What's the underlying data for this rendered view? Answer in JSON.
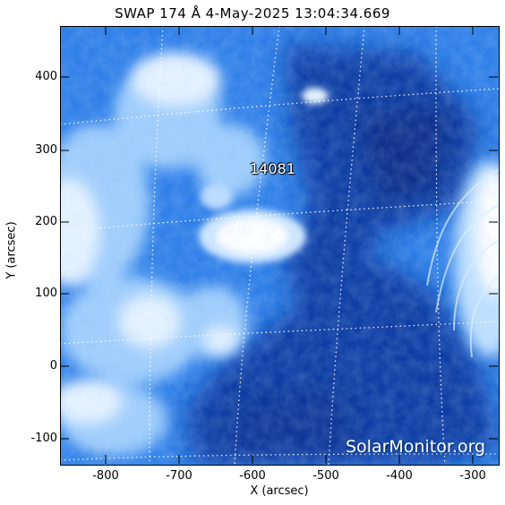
{
  "title": "SWAP 174 Å  4-May-2025 13:04:34.669",
  "region_label": "14081",
  "watermark": "SolarMonitor.org",
  "xlabel": "X (arcsec)",
  "ylabel": "Y (arcsec)",
  "x_ticks": [
    "-800",
    "-700",
    "-600",
    "-500",
    "-400",
    "-300"
  ],
  "y_ticks": [
    "400",
    "300",
    "200",
    "100",
    "0",
    "-100"
  ],
  "colors": {
    "deep_blue": "#0b3fa8",
    "mid_blue": "#2a78e8",
    "bright": "#ffffff"
  }
}
